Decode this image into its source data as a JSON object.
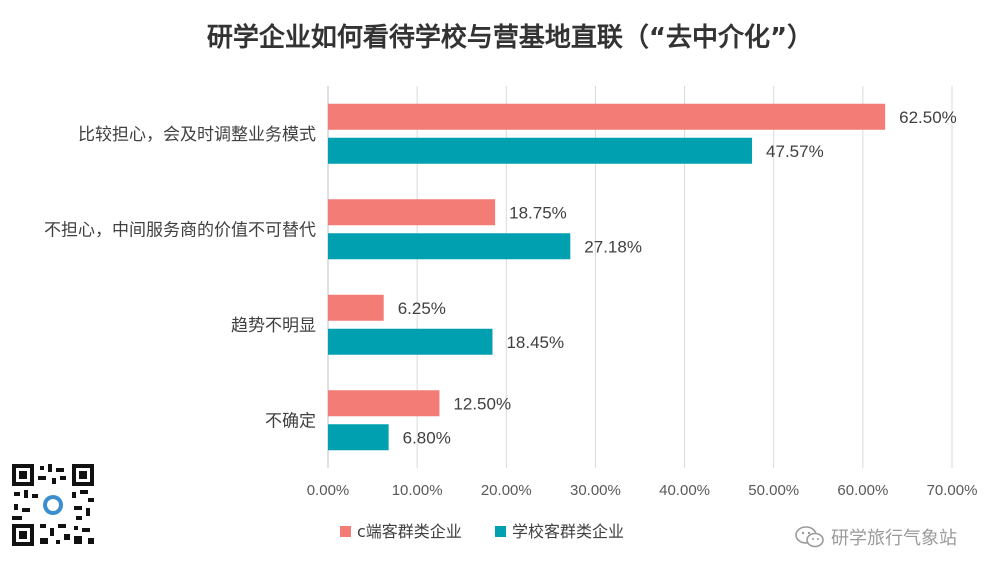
{
  "chart_data": {
    "type": "bar",
    "orientation": "horizontal",
    "title": "研学企业如何看待学校与营基地直联（“去中介化”）",
    "categories": [
      "比较担心，会及时调整业务模式",
      "不担心，中间服务商的价值不可替代",
      "趋势不明显",
      "不确定"
    ],
    "series": [
      {
        "name": "c端客群类企业",
        "values": [
          62.5,
          18.75,
          6.25,
          12.5
        ],
        "labels": [
          "62.50%",
          "18.75%",
          "6.25%",
          "12.50%"
        ],
        "color": "#F47C76"
      },
      {
        "name": "学校客群类企业",
        "values": [
          47.57,
          27.18,
          18.45,
          6.8
        ],
        "labels": [
          "47.57%",
          "27.18%",
          "18.45%",
          "6.80%"
        ],
        "color": "#00A0B0"
      }
    ],
    "xlim": [
      0,
      70
    ],
    "xticks": [
      "0.00%",
      "10.00%",
      "20.00%",
      "30.00%",
      "40.00%",
      "50.00%",
      "60.00%",
      "70.00%"
    ],
    "grid": true,
    "legend": "bottom"
  },
  "brand": {
    "name": "研学旅行气象站"
  }
}
